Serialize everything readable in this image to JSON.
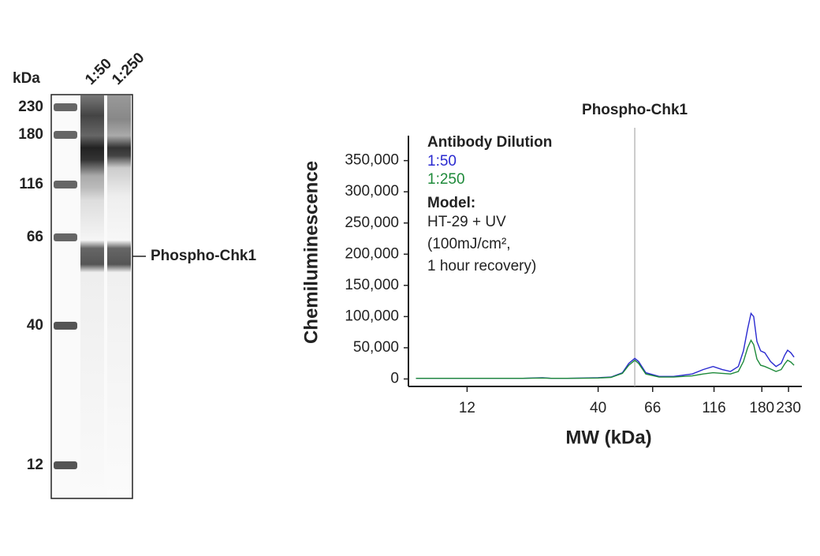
{
  "blot": {
    "unit_label": "kDa",
    "lanes": [
      "1:50",
      "1:250"
    ],
    "ladder": [
      "230",
      "180",
      "116",
      "66",
      "40",
      "12"
    ],
    "band_label": "Phospho-Chk1"
  },
  "chart_data": {
    "type": "line",
    "annotation": {
      "label": "Phospho-Chk1",
      "x": 56
    },
    "ylabel": "Chemiluminescence",
    "xlabel": "MW (kDa)",
    "legend_title": "Antibody Dilution",
    "notes_title": "Model:",
    "notes": [
      "HT-29 + UV",
      "(100mJ/cm²,",
      "1 hour recovery)"
    ],
    "xscale": "log",
    "xlim": [
      7,
      260
    ],
    "xticks": [
      12,
      40,
      66,
      116,
      180,
      230
    ],
    "ylim": [
      -12000,
      390000
    ],
    "yticks": [
      0,
      {
        "value": 50000,
        "label": "50,000"
      },
      {
        "value": 100000,
        "label": "100,000"
      },
      {
        "value": 150000,
        "label": "150,000"
      },
      {
        "value": 200000,
        "label": "200,000"
      },
      {
        "value": 250000,
        "label": "250,000"
      },
      {
        "value": 300000,
        "label": "300,000"
      },
      {
        "value": 350000,
        "label": "350,000"
      }
    ],
    "x": [
      7.5,
      10,
      15,
      20,
      24,
      26,
      30,
      35,
      40,
      45,
      50,
      53,
      56,
      58,
      62,
      70,
      80,
      95,
      105,
      115,
      125,
      135,
      145,
      152,
      158,
      163,
      167,
      172,
      178,
      185,
      195,
      205,
      215,
      222,
      228,
      235,
      242
    ],
    "series": [
      {
        "name": "1:50",
        "color": "#2a2ad0",
        "values": [
          1000,
          1000,
          1000,
          1000,
          2000,
          1000,
          1000,
          1500,
          2000,
          3000,
          10000,
          25000,
          33000,
          28000,
          10000,
          4000,
          4000,
          8000,
          15000,
          20000,
          15000,
          12000,
          20000,
          45000,
          80000,
          105000,
          100000,
          60000,
          45000,
          42000,
          28000,
          20000,
          25000,
          38000,
          46000,
          42000,
          35000
        ]
      },
      {
        "name": "1:250",
        "color": "#1e8a3a",
        "values": [
          1000,
          1000,
          1000,
          1000,
          1500,
          1000,
          1000,
          1200,
          1500,
          2500,
          9000,
          22000,
          30000,
          25000,
          8000,
          3000,
          3000,
          5000,
          8000,
          10000,
          9000,
          8000,
          12000,
          28000,
          50000,
          62000,
          55000,
          32000,
          22000,
          20000,
          16000,
          12000,
          15000,
          24000,
          30000,
          27000,
          22000
        ]
      }
    ]
  }
}
